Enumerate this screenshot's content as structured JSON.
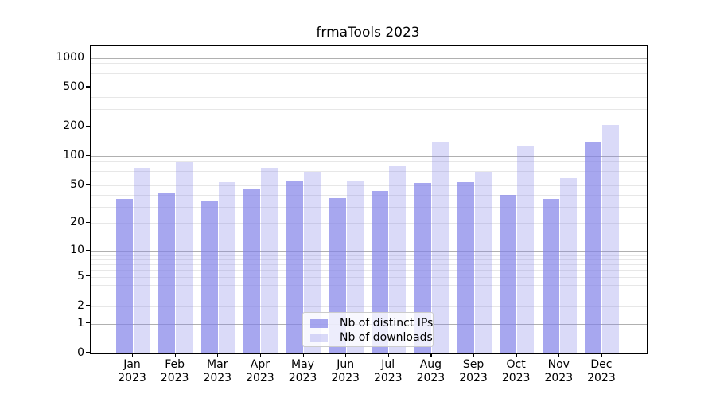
{
  "chart_data": {
    "type": "bar",
    "title": "frmaTools 2023",
    "xlabel": "",
    "ylabel": "",
    "yscale": "log(value+1)",
    "ylim": [
      0,
      1320
    ],
    "yticks": [
      1000,
      500,
      200,
      100,
      50,
      20,
      10,
      5,
      2,
      1,
      0
    ],
    "grid": "horizontal major and minor gridlines",
    "legend_position": "lower center",
    "months": [
      "Jan",
      "Feb",
      "Mar",
      "Apr",
      "May",
      "Jun",
      "Jul",
      "Aug",
      "Sep",
      "Oct",
      "Nov",
      "Dec"
    ],
    "year_label": "2023",
    "categories": [
      "Jan 2023",
      "Feb 2023",
      "Mar 2023",
      "Apr 2023",
      "May 2023",
      "Jun 2023",
      "Jul 2023",
      "Aug 2023",
      "Sep 2023",
      "Oct 2023",
      "Nov 2023",
      "Dec 2023"
    ],
    "series": [
      {
        "name": "Nb of distinct IPs",
        "color": "#a7a7f0",
        "values": [
          36,
          41,
          34,
          45,
          56,
          37,
          44,
          53,
          54,
          40,
          36,
          137
        ]
      },
      {
        "name": "Nb of downloads",
        "color": "#dadaf9",
        "values": [
          75,
          88,
          54,
          76,
          69,
          56,
          80,
          139,
          69,
          127,
          59,
          209
        ]
      }
    ]
  },
  "colors": {
    "bar_distinct_ips": "#a7a7f0",
    "bar_downloads": "#dadaf9",
    "major_gridline": "#b0b0b0",
    "minor_gridline": "#e7e7e7",
    "axis": "#000000",
    "legend_border": "#cccccc"
  }
}
